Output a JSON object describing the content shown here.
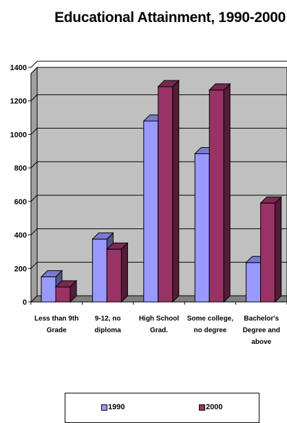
{
  "chart_data": {
    "type": "bar",
    "title": "Educational Attainment, 1990-2000",
    "categories": [
      "Less than 9th Grade",
      "9-12, no diploma",
      "High School Grad.",
      "Some college, no degree",
      "Bachelor's Degree and above"
    ],
    "series": [
      {
        "name": "1990",
        "values": [
          150,
          375,
          1080,
          885,
          235
        ],
        "color": "#9999ff"
      },
      {
        "name": "2000",
        "values": [
          90,
          315,
          1285,
          1265,
          590
        ],
        "color": "#993366"
      }
    ],
    "yticks": [
      "0",
      "200",
      "400",
      "600",
      "800",
      "1000",
      "1200",
      "1400"
    ],
    "ylim": [
      0,
      1400
    ],
    "grid": true,
    "legend": "bottom",
    "plot_background": "#c0c0c0"
  }
}
